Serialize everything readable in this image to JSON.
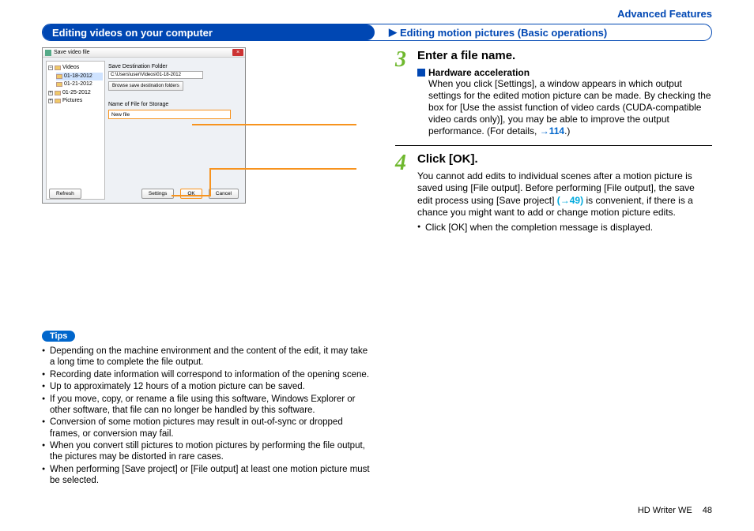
{
  "header": {
    "section": "Advanced Features"
  },
  "titlebar": {
    "left": "Editing videos on your computer",
    "right": "Editing motion pictures (Basic operations)",
    "arrow": "▶"
  },
  "footer": {
    "product": "HD Writer WE",
    "page": "48"
  },
  "dialog": {
    "title": "Save video file",
    "close": "×",
    "tree": {
      "root": "Videos",
      "sel": "01-18-2012",
      "child1": "01-21-2012",
      "child2": "01-25-2012",
      "pictures": "Pictures"
    },
    "dest_label": "Save Destination Folder",
    "dest_value": "C:\\Users\\user\\Videos\\01-18-2012",
    "browse": "Browse save destination folders",
    "name_label": "Name of File for Storage",
    "name_value": "New file",
    "buttons": {
      "refresh": "Refresh",
      "settings": "Settings",
      "ok": "OK",
      "cancel": "Cancel"
    }
  },
  "tips": {
    "badge": "Tips",
    "items": [
      "Depending on the machine environment and the content of the edit, it may take a long time to complete the file output.",
      "Recording date information will correspond to information of the opening scene.",
      "Up to approximately 12 hours of a motion picture can be saved.",
      "If you move, copy, or rename a file using this software, Windows Explorer or other software, that file can no longer be handled by this software.",
      "Conversion of some motion pictures may result in out-of-sync or dropped frames, or conversion may fail.",
      "When you convert still pictures to motion pictures by performing the file output, the pictures may be distorted in rare cases.",
      "When performing [Save project] or [File output] at least one motion picture must be selected."
    ]
  },
  "step3": {
    "num": "3",
    "title": "Enter a file name.",
    "hw_title": "Hardware acceleration",
    "hw_body_1": "When you click [Settings], a window appears in which output settings for the edited motion picture can be made. By checking the box for [Use the assist function of video cards (CUDA-compatible video cards only)], you may be able to improve the output performance. (For details, ",
    "hw_link": "→114",
    "hw_body_2": ".)"
  },
  "step4": {
    "num": "4",
    "title": "Click [OK].",
    "body_1": "You cannot add edits to individual scenes after a motion picture is saved using [File output]. Before performing [File output], the save edit process using [Save project] ",
    "link": "(→49)",
    "body_2": " is convenient, if there is a chance you might want to add or change motion picture edits.",
    "bullet": "Click [OK] when the completion message is displayed."
  }
}
